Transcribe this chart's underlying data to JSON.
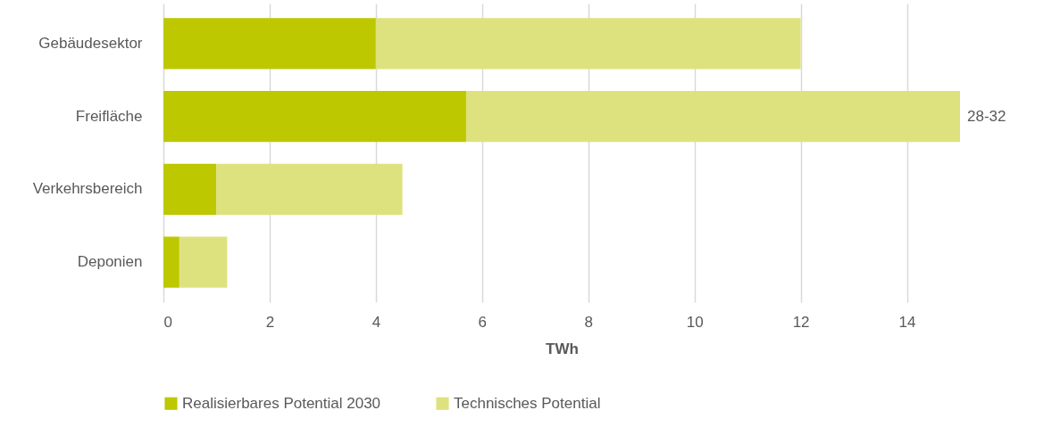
{
  "chart_data": {
    "type": "bar",
    "orientation": "horizontal",
    "stacked": true,
    "xlabel": "TWh",
    "categories": [
      "Gebäudesektor",
      "Freifläche",
      "Verkehrsbereich",
      "Deponien"
    ],
    "series": [
      {
        "name": "Realisierbares Potential 2030",
        "color": "#bdc800",
        "values": [
          4.0,
          5.7,
          1.0,
          0.3
        ]
      },
      {
        "name": "Technisches Potential",
        "color": "#dde27f",
        "values": [
          8.0,
          9.3,
          3.5,
          0.9
        ]
      }
    ],
    "xlim": [
      0,
      15
    ],
    "xticks": [
      0,
      2,
      4,
      6,
      8,
      10,
      12,
      14
    ],
    "grid": "x",
    "legend": "bottom",
    "annotations": [
      {
        "text": "28-32",
        "x": 15,
        "y": "Freifläche"
      }
    ]
  }
}
